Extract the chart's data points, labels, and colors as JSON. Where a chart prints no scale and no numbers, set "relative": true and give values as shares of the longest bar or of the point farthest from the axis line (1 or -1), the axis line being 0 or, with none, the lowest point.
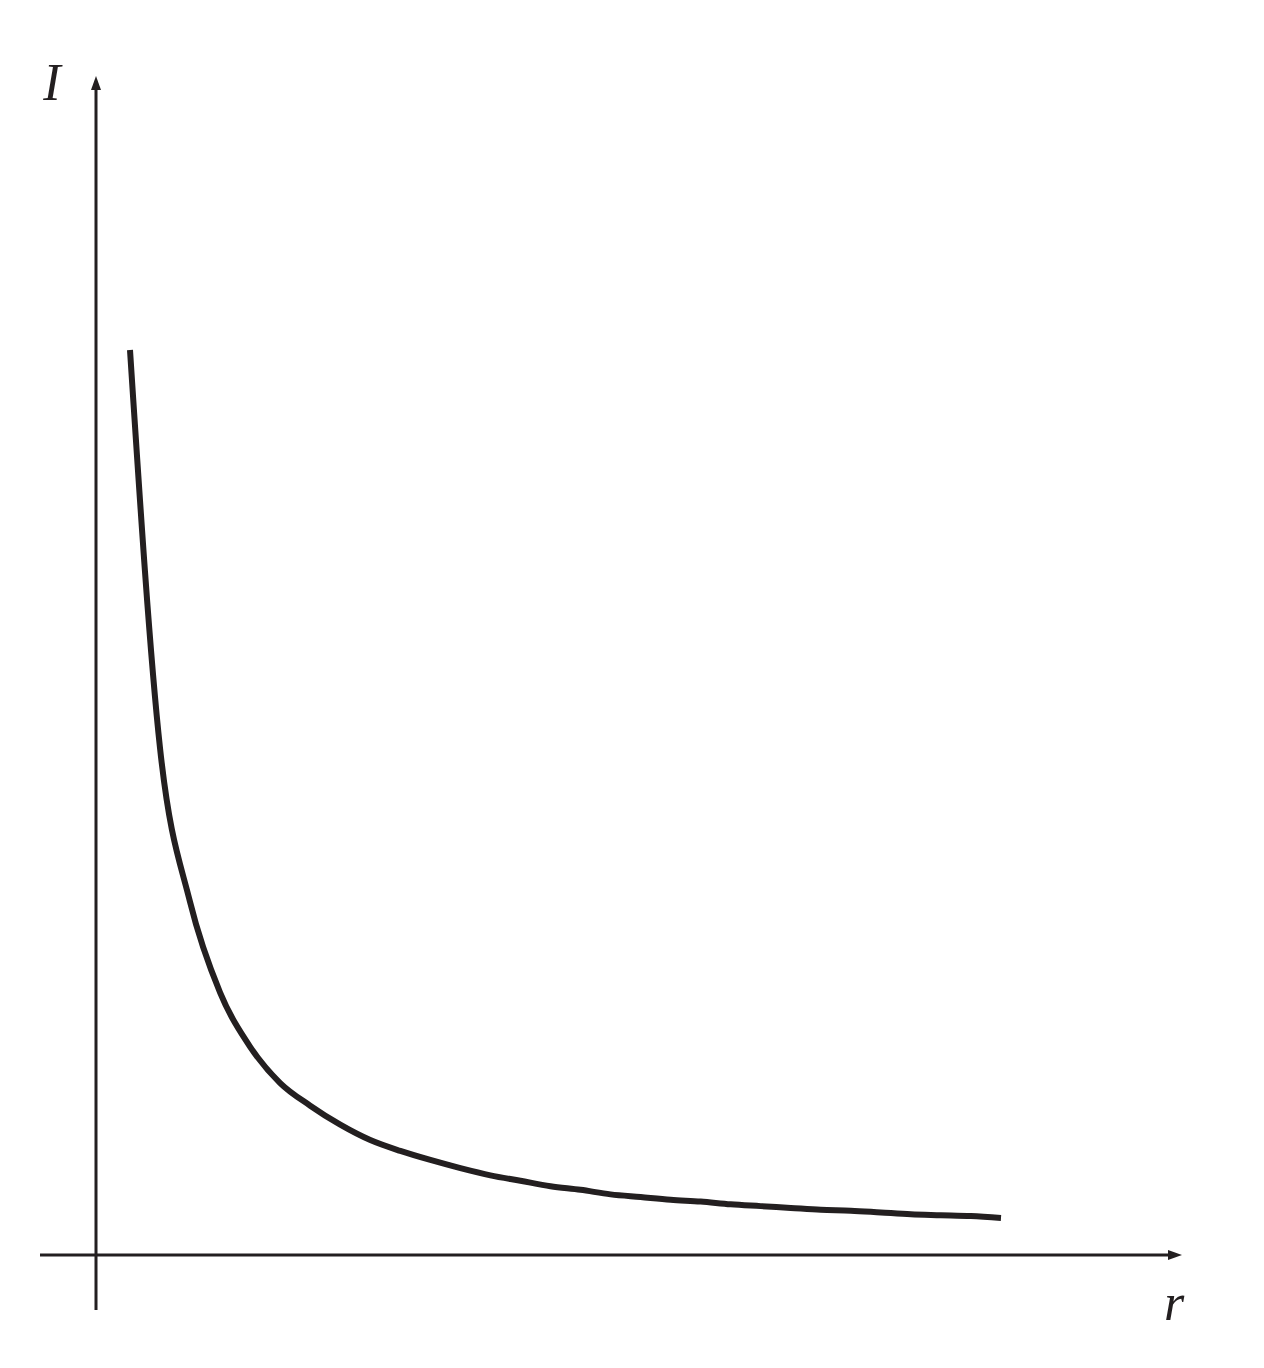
{
  "chart_data": {
    "type": "line",
    "relative": true,
    "xlabel": "r",
    "ylabel": "I",
    "color": "#231f20",
    "categories": [
      null,
      null,
      null,
      null,
      null,
      null,
      null,
      null,
      null,
      null,
      null,
      null,
      null,
      null,
      null,
      null,
      null,
      null,
      null,
      null,
      null,
      null,
      null,
      null,
      null,
      null,
      null,
      null,
      null,
      null
    ],
    "values": [
      1,
      0.56,
      0.39,
      0.29,
      0.23,
      0.19,
      0.165,
      0.144,
      0.127,
      0.115,
      0.105,
      0.096,
      0.088,
      0.082,
      0.076,
      0.072,
      0.067,
      0.064,
      0.061,
      0.059,
      0.056,
      0.054,
      0.052,
      0.05,
      0.049,
      0.047,
      0.045,
      0.044,
      0.043,
      0.041
    ]
  }
}
